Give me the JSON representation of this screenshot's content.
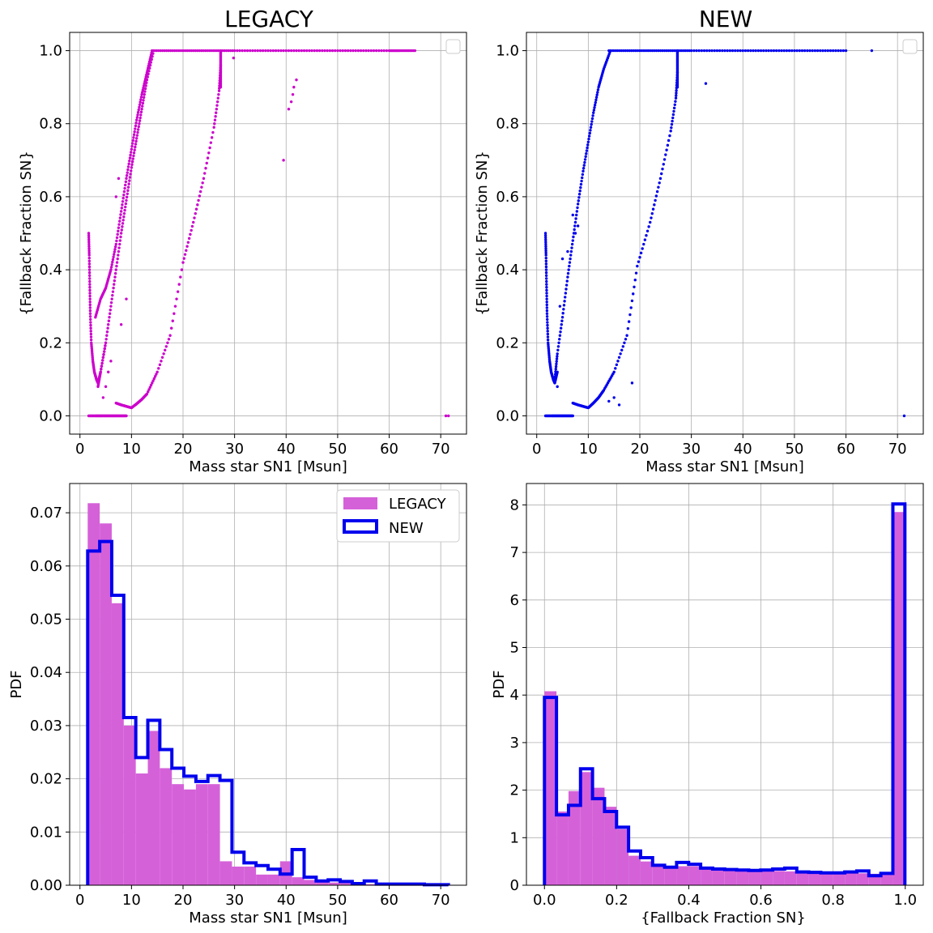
{
  "colors": {
    "legacy": "#cc00cc",
    "legacy_hist": "#d561d9",
    "new": "#0000ee",
    "grid": "#b0b0b0"
  },
  "chart_data": [
    {
      "id": "legacy-scatter",
      "type": "scatter",
      "title": "LEGACY",
      "xlabel": "Mass star SN1 [Msun]",
      "ylabel": "{Fallback Fraction SN}",
      "xlim": [
        -2,
        75
      ],
      "ylim": [
        -0.05,
        1.05
      ],
      "xticks": [
        0,
        10,
        20,
        30,
        40,
        50,
        60,
        70
      ],
      "xtick_labels": [
        "0",
        "10",
        "20",
        "30",
        "40",
        "50",
        "60",
        "70"
      ],
      "yticks": [
        0.0,
        0.2,
        0.4,
        0.6,
        0.8,
        1.0
      ],
      "ytick_labels": [
        "0.0",
        "0.2",
        "0.4",
        "0.6",
        "0.8",
        "1.0"
      ],
      "grid": true,
      "legend": "empty, top-right",
      "color": "#cc00cc",
      "series": [
        {
          "curve": "low-branch",
          "x": [
            1.7,
            1.8,
            1.9,
            2.0,
            2.2,
            2.5,
            2.8,
            3.2,
            3.5,
            4.0,
            5.0
          ],
          "y": [
            0.5,
            0.44,
            0.36,
            0.28,
            0.2,
            0.15,
            0.12,
            0.1,
            0.09,
            0.12,
            0.2
          ]
        },
        {
          "curve": "upper-branch",
          "x": [
            3.0,
            4.0,
            5.0,
            6.0,
            7.0,
            8.0,
            9.0,
            10.0,
            11.0,
            12.0,
            13.0,
            14.0
          ],
          "y": [
            0.27,
            0.32,
            0.35,
            0.4,
            0.47,
            0.56,
            0.65,
            0.73,
            0.81,
            0.88,
            0.94,
            1.0
          ]
        },
        {
          "curve": "mid-branch",
          "x": [
            3.5,
            4.0,
            5.0,
            6.0,
            7.0,
            8.0,
            9.0,
            10.0,
            11.0,
            12.0,
            13.0,
            14.3
          ],
          "y": [
            0.08,
            0.12,
            0.2,
            0.3,
            0.4,
            0.5,
            0.59,
            0.68,
            0.76,
            0.84,
            0.92,
            1.0
          ]
        },
        {
          "curve": "zero-line",
          "x": [
            1.7,
            3,
            4,
            5,
            6,
            7,
            8,
            9
          ],
          "y": [
            0,
            0,
            0,
            0,
            0,
            0,
            0,
            0
          ]
        },
        {
          "curve": "right-branch",
          "x": [
            7.0,
            8.0,
            9.0,
            10.0,
            11.0,
            12.0,
            13.0,
            15.0,
            17.5,
            20.0,
            22.0,
            24.0,
            26.0,
            27.0,
            27.3
          ],
          "y": [
            0.035,
            0.03,
            0.026,
            0.022,
            0.033,
            0.045,
            0.06,
            0.12,
            0.22,
            0.42,
            0.53,
            0.65,
            0.79,
            0.89,
            0.96
          ]
        },
        {
          "curve": "vertical-edge",
          "x": [
            27.3,
            27.3,
            27.3,
            27.3
          ],
          "y": [
            0.9,
            0.94,
            0.97,
            1.0
          ]
        },
        {
          "curve": "plateau",
          "x": [
            14,
            18,
            22,
            26,
            30,
            35,
            40,
            45,
            50,
            55,
            60,
            62,
            65
          ],
          "y": [
            1,
            1,
            1,
            1,
            1,
            1,
            1,
            1,
            1,
            1,
            1,
            1,
            1
          ]
        },
        {
          "curve": "outliers",
          "x": [
            4.5,
            5.0,
            5.5,
            6.0,
            7.0,
            7.5,
            8.0,
            9.0,
            29.8,
            39.5,
            40.5,
            41.0,
            41.3,
            41.5,
            42.0,
            71.0,
            71.5
          ],
          "y": [
            0.05,
            0.08,
            0.12,
            0.15,
            0.6,
            0.65,
            0.25,
            0.32,
            0.98,
            0.7,
            0.84,
            0.86,
            0.88,
            0.9,
            0.92,
            0.0,
            0.0
          ]
        }
      ]
    },
    {
      "id": "new-scatter",
      "type": "scatter",
      "title": "NEW",
      "xlabel": "Mass star SN1 [Msun]",
      "ylabel": "{Fallback Fraction SN}",
      "xlim": [
        -2,
        75
      ],
      "ylim": [
        -0.05,
        1.05
      ],
      "xticks": [
        0,
        10,
        20,
        30,
        40,
        50,
        60,
        70
      ],
      "xtick_labels": [
        "0",
        "10",
        "20",
        "30",
        "40",
        "50",
        "60",
        "70"
      ],
      "yticks": [
        0.0,
        0.2,
        0.4,
        0.6,
        0.8,
        1.0
      ],
      "ytick_labels": [
        "0.0",
        "0.2",
        "0.4",
        "0.6",
        "0.8",
        "1.0"
      ],
      "grid": true,
      "legend": "empty, top-right",
      "color": "#0000ee",
      "series": [
        {
          "curve": "low-branch",
          "x": [
            1.7,
            1.8,
            1.9,
            2.0,
            2.2,
            2.5,
            2.8,
            3.2,
            3.5,
            4.0
          ],
          "y": [
            0.5,
            0.44,
            0.36,
            0.28,
            0.2,
            0.15,
            0.12,
            0.1,
            0.09,
            0.12
          ]
        },
        {
          "curve": "upper-branch",
          "x": [
            3.5,
            4.0,
            5.0,
            6.0,
            7.0,
            8.0,
            9.0,
            10.0,
            11.0,
            12.0,
            13.0,
            14.3
          ],
          "y": [
            0.1,
            0.17,
            0.27,
            0.38,
            0.48,
            0.58,
            0.67,
            0.75,
            0.83,
            0.9,
            0.95,
            1.0
          ]
        },
        {
          "curve": "zero-line",
          "x": [
            1.7,
            3,
            4,
            5,
            6,
            7
          ],
          "y": [
            0,
            0,
            0,
            0,
            0,
            0
          ]
        },
        {
          "curve": "right-branch",
          "x": [
            7.0,
            8.0,
            9.0,
            10.0,
            11.0,
            12.0,
            13.0,
            15.0,
            17.5,
            19.5,
            22.0,
            24.0,
            26.0,
            27.0,
            27.3
          ],
          "y": [
            0.035,
            0.03,
            0.026,
            0.022,
            0.035,
            0.05,
            0.07,
            0.12,
            0.22,
            0.41,
            0.53,
            0.65,
            0.78,
            0.87,
            0.94
          ]
        },
        {
          "curve": "vertical-edge",
          "x": [
            27.3,
            27.3,
            27.3,
            27.3
          ],
          "y": [
            0.9,
            0.94,
            0.97,
            1.0
          ]
        },
        {
          "curve": "plateau",
          "x": [
            14,
            18,
            22,
            26,
            30,
            35,
            40,
            45,
            50,
            55,
            60
          ],
          "y": [
            1,
            1,
            1,
            1,
            1,
            1,
            1,
            1,
            1,
            1,
            1
          ]
        },
        {
          "curve": "outliers",
          "x": [
            4.0,
            4.5,
            5.0,
            6.0,
            7.0,
            7.5,
            8.0,
            14.0,
            15.0,
            16.0,
            18.5,
            32.8,
            65.0,
            71.3
          ],
          "y": [
            0.08,
            0.3,
            0.43,
            0.45,
            0.55,
            0.5,
            0.52,
            0.04,
            0.05,
            0.03,
            0.09,
            0.91,
            1.0,
            0.0
          ]
        }
      ]
    },
    {
      "id": "mass-pdf",
      "type": "bar",
      "title": "",
      "xlabel": "Mass star SN1 [Msun]",
      "ylabel": "PDF",
      "xlim": [
        -2,
        75
      ],
      "ylim": [
        0,
        0.0755
      ],
      "xticks": [
        0,
        10,
        20,
        30,
        40,
        50,
        60,
        70
      ],
      "xtick_labels": [
        "0",
        "10",
        "20",
        "30",
        "40",
        "50",
        "60",
        "70"
      ],
      "yticks": [
        0.0,
        0.01,
        0.02,
        0.03,
        0.04,
        0.05,
        0.06,
        0.07
      ],
      "ytick_labels": [
        "0.00",
        "0.01",
        "0.02",
        "0.03",
        "0.04",
        "0.05",
        "0.06",
        "0.07"
      ],
      "grid": true,
      "legend": "top-right",
      "bins_start": 1.5,
      "bin_width": 2.333,
      "series": [
        {
          "name": "LEGACY",
          "style": "filled",
          "values": [
            0.0718,
            0.068,
            0.053,
            0.03,
            0.021,
            0.029,
            0.022,
            0.019,
            0.018,
            0.019,
            0.019,
            0.0045,
            0.0035,
            0.0035,
            0.002,
            0.002,
            0.0045,
            0.0015,
            0.001,
            0.001,
            0.0005,
            0.0005,
            0.0003,
            0.0002,
            0.0002,
            0.0001,
            0.0001,
            0.0001,
            0.0001,
            0.0001
          ]
        },
        {
          "name": "NEW",
          "style": "step",
          "values": [
            0.0628,
            0.0646,
            0.0545,
            0.0315,
            0.024,
            0.031,
            0.0255,
            0.022,
            0.0205,
            0.0195,
            0.0206,
            0.0197,
            0.0062,
            0.0042,
            0.0037,
            0.003,
            0.0021,
            0.0067,
            0.0015,
            0.0008,
            0.001,
            0.0007,
            0.0003,
            0.0008,
            0.0002,
            0.0002,
            0.0002,
            0.0002,
            0.0001,
            0.0001
          ]
        }
      ]
    },
    {
      "id": "fallback-pdf",
      "type": "bar",
      "title": "",
      "xlabel": "{Fallback Fraction SN}",
      "ylabel": "PDF",
      "xlim": [
        -0.05,
        1.05
      ],
      "ylim": [
        0,
        8.45
      ],
      "xticks": [
        0.0,
        0.2,
        0.4,
        0.6,
        0.8,
        1.0
      ],
      "xtick_labels": [
        "0.0",
        "0.2",
        "0.4",
        "0.6",
        "0.8",
        "1.0"
      ],
      "yticks": [
        0,
        1,
        2,
        3,
        4,
        5,
        6,
        7,
        8
      ],
      "ytick_labels": [
        "0",
        "1",
        "2",
        "3",
        "4",
        "5",
        "6",
        "7",
        "8"
      ],
      "grid": true,
      "bins_start": 0.0,
      "bin_width": 0.0333,
      "series": [
        {
          "name": "LEGACY",
          "style": "filled",
          "values": [
            4.08,
            1.55,
            1.98,
            2.38,
            2.05,
            1.65,
            1.18,
            0.62,
            0.5,
            0.42,
            0.38,
            0.4,
            0.4,
            0.37,
            0.34,
            0.33,
            0.32,
            0.31,
            0.32,
            0.3,
            0.29,
            0.28,
            0.27,
            0.26,
            0.26,
            0.26,
            0.25,
            0.24,
            0.25,
            7.85
          ]
        },
        {
          "name": "NEW",
          "style": "step",
          "values": [
            3.95,
            1.48,
            1.68,
            2.45,
            1.82,
            1.55,
            1.22,
            0.72,
            0.58,
            0.42,
            0.38,
            0.48,
            0.44,
            0.36,
            0.34,
            0.33,
            0.32,
            0.31,
            0.32,
            0.34,
            0.36,
            0.28,
            0.27,
            0.26,
            0.26,
            0.28,
            0.3,
            0.2,
            0.25,
            8.02
          ]
        }
      ],
      "legend": ""
    }
  ]
}
